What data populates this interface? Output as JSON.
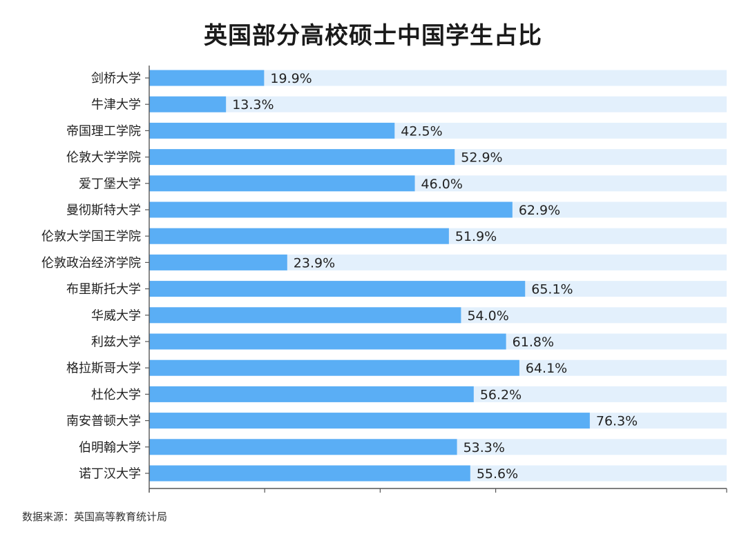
{
  "chart_data": {
    "type": "bar",
    "orientation": "horizontal",
    "title": "英国部分高校硕士中国学生占比",
    "categories": [
      "剑桥大学",
      "牛津大学",
      "帝国理工学院",
      "伦敦大学学院",
      "爱丁堡大学",
      "曼彻斯特大学",
      "伦敦大学国王学院",
      "伦敦政治经济学院",
      "布里斯托大学",
      "华威大学",
      "利兹大学",
      "格拉斯哥大学",
      "杜伦大学",
      "南安普顿大学",
      "伯明翰大学",
      "诺丁汉大学"
    ],
    "values": [
      19.9,
      13.3,
      42.5,
      52.9,
      46.0,
      62.9,
      51.9,
      23.9,
      65.1,
      54.0,
      61.8,
      64.1,
      56.2,
      76.3,
      53.3,
      55.6
    ],
    "value_labels": [
      "19.9%",
      "13.3%",
      "42.5%",
      "52.9%",
      "46.0%",
      "62.9%",
      "51.9%",
      "23.9%",
      "65.1%",
      "54.0%",
      "61.8%",
      "64.1%",
      "56.2%",
      "76.3%",
      "53.3%",
      "55.6%"
    ],
    "xlim": [
      0,
      100
    ],
    "background_bar_value": 100,
    "grid": false,
    "legend": "none"
  },
  "source_note": "数据来源：英国高等教育统计局",
  "colors": {
    "bar": "#5aaef5",
    "background_bar": "#e3f0fc",
    "axis": "#555555"
  }
}
